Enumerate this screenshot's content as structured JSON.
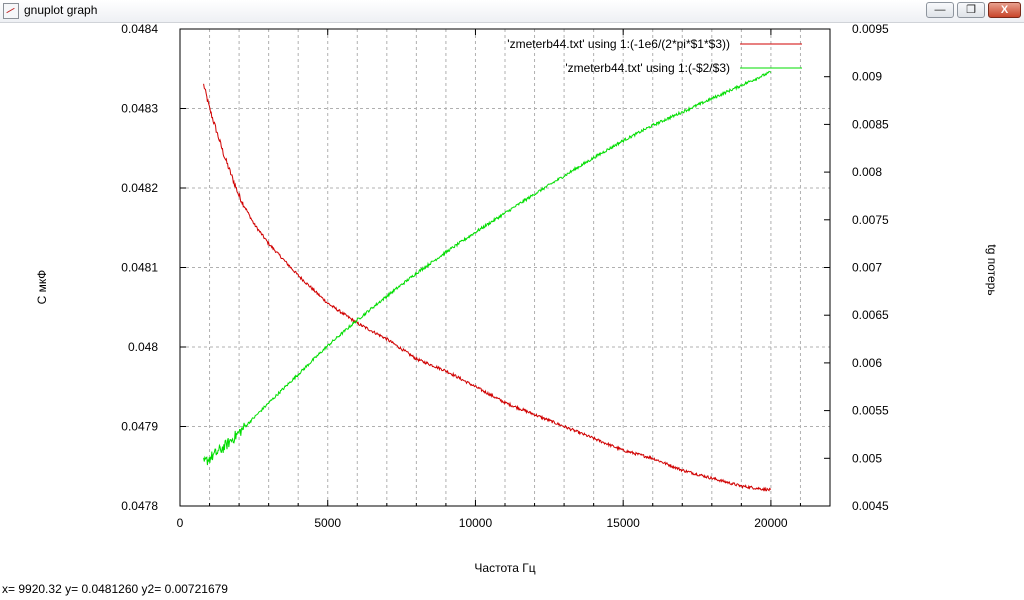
{
  "window": {
    "title": "gnuplot graph",
    "min_label": "—",
    "max_label": "❐",
    "close_label": "X"
  },
  "status": {
    "x_label": "x=",
    "x_value": "9920.32",
    "y_label": "y=",
    "y_value": "0.0481260",
    "y2_label": "y2=",
    "y2_value": "0.00721679"
  },
  "chart_data": {
    "type": "line",
    "xlabel": "Частота Гц",
    "ylabel": "С мкФ",
    "y2label": "tg потерь",
    "xlim": [
      0,
      22000
    ],
    "ylim": [
      0.0478,
      0.0484
    ],
    "y2lim": [
      0.0045,
      0.0095
    ],
    "grid": true,
    "legend_position": "top-right",
    "x_ticks": [
      "0",
      "5000",
      "10000",
      "15000",
      "20000"
    ],
    "y_ticks": [
      "0.0478",
      "0.0479",
      "0.048",
      "0.0481",
      "0.0482",
      "0.0483",
      "0.0484"
    ],
    "y2_ticks": [
      "0.0045",
      "0.005",
      "0.0055",
      "0.006",
      "0.0065",
      "0.007",
      "0.0075",
      "0.008",
      "0.0085",
      "0.009",
      "0.0095"
    ],
    "series": [
      {
        "name": "'zmeterb44.txt' using 1:(-1e6/(2*pi*$1*$3))",
        "axis": "y",
        "color": "#d00000",
        "x": [
          800,
          1000,
          1500,
          2000,
          2500,
          3000,
          4000,
          5000,
          6000,
          7000,
          8000,
          9000,
          10000,
          11000,
          12000,
          13000,
          14000,
          15000,
          16000,
          17000,
          18000,
          19000,
          20000
        ],
        "y": [
          0.04833,
          0.0483,
          0.04824,
          0.04819,
          0.048155,
          0.04813,
          0.04809,
          0.048055,
          0.04803,
          0.04801,
          0.047985,
          0.04797,
          0.04795,
          0.04793,
          0.047915,
          0.0479,
          0.047885,
          0.04787,
          0.04786,
          0.047845,
          0.047835,
          0.047825,
          0.04782
        ]
      },
      {
        "name": "'zmeterb44.txt' using 1:(-$2/$3)",
        "axis": "y2",
        "color": "#00dd00",
        "x": [
          800,
          1000,
          1500,
          2000,
          3000,
          4000,
          5000,
          6000,
          7000,
          8000,
          9000,
          10000,
          11000,
          12000,
          13000,
          14000,
          15000,
          16000,
          17000,
          18000,
          19000,
          20000
        ],
        "y": [
          0.00495,
          0.005,
          0.00512,
          0.00527,
          0.00558,
          0.00588,
          0.00618,
          0.00645,
          0.0067,
          0.00694,
          0.00716,
          0.00737,
          0.00757,
          0.00777,
          0.00796,
          0.00815,
          0.00833,
          0.00849,
          0.00863,
          0.00877,
          0.00891,
          0.00905
        ]
      }
    ]
  }
}
